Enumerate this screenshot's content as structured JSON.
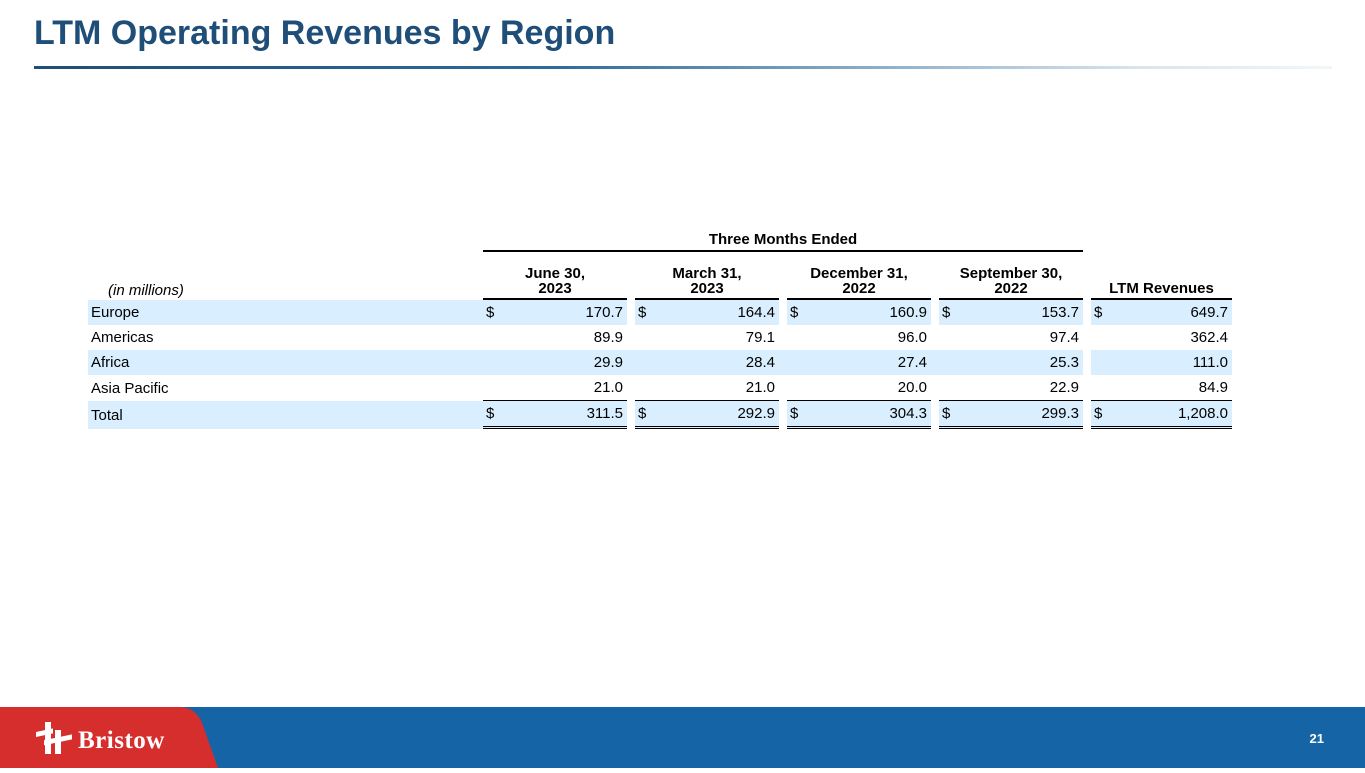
{
  "title": "LTM Operating Revenues by Region",
  "table": {
    "group_header": "Three Months Ended",
    "unit_label": "(in millions)",
    "columns": [
      {
        "line1": "June 30,",
        "line2": "2023"
      },
      {
        "line1": "March 31,",
        "line2": "2023"
      },
      {
        "line1": "December 31,",
        "line2": "2022"
      },
      {
        "line1": "September  30,",
        "line2": "2022"
      }
    ],
    "ltm_header": "LTM Revenues",
    "currency": "$",
    "rows": [
      {
        "label": "Europe",
        "values": [
          "170.7",
          "164.4",
          "160.9",
          "153.7"
        ],
        "ltm": "649.7",
        "show_currency": true
      },
      {
        "label": "Americas",
        "values": [
          "89.9",
          "79.1",
          "96.0",
          "97.4"
        ],
        "ltm": "362.4",
        "show_currency": false
      },
      {
        "label": "Africa",
        "values": [
          "29.9",
          "28.4",
          "27.4",
          "25.3"
        ],
        "ltm": "111.0",
        "show_currency": false
      },
      {
        "label": "Asia Pacific",
        "values": [
          "21.0",
          "21.0",
          "20.0",
          "22.9"
        ],
        "ltm": "84.9",
        "show_currency": false
      },
      {
        "label": "Total",
        "values": [
          "311.5",
          "292.9",
          "304.3",
          "299.3"
        ],
        "ltm": "1,208.0",
        "show_currency": true
      }
    ]
  },
  "footer": {
    "logo_text": "Bristow",
    "page_number": "21"
  },
  "colors": {
    "title": "#1f4e79",
    "row_shade": "#d9efff",
    "footer_bar": "#1565a6",
    "logo_panel": "#d62d2d"
  }
}
